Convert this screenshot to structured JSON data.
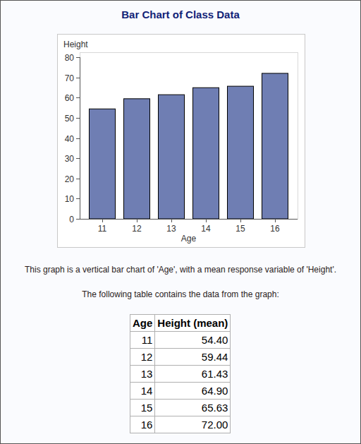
{
  "chart_data": {
    "type": "bar",
    "title": "Bar Chart of Class Data",
    "x_label": "Age",
    "y_label": "Height",
    "categories": [
      "11",
      "12",
      "13",
      "14",
      "15",
      "16"
    ],
    "values": [
      54.4,
      59.44,
      61.43,
      64.9,
      65.63,
      72
    ],
    "color": "#6f7eb3",
    "ylim": [
      0,
      80
    ],
    "yticks": [
      0,
      10,
      20,
      30,
      40,
      50,
      60,
      70,
      80
    ],
    "grid": false
  },
  "description": [
    "This graph is a vertical bar chart of 'Age', with a mean response variable of 'Height'.",
    "The following table contains the data from the graph:"
  ],
  "table": {
    "header": [
      "Age",
      "Height (mean)"
    ],
    "rows": [
      [
        "11",
        "54.40"
      ],
      [
        "12",
        "59.44"
      ],
      [
        "13",
        "61.43"
      ],
      [
        "14",
        "64.90"
      ],
      [
        "15",
        "65.63"
      ],
      [
        "16",
        "72.00"
      ]
    ]
  }
}
